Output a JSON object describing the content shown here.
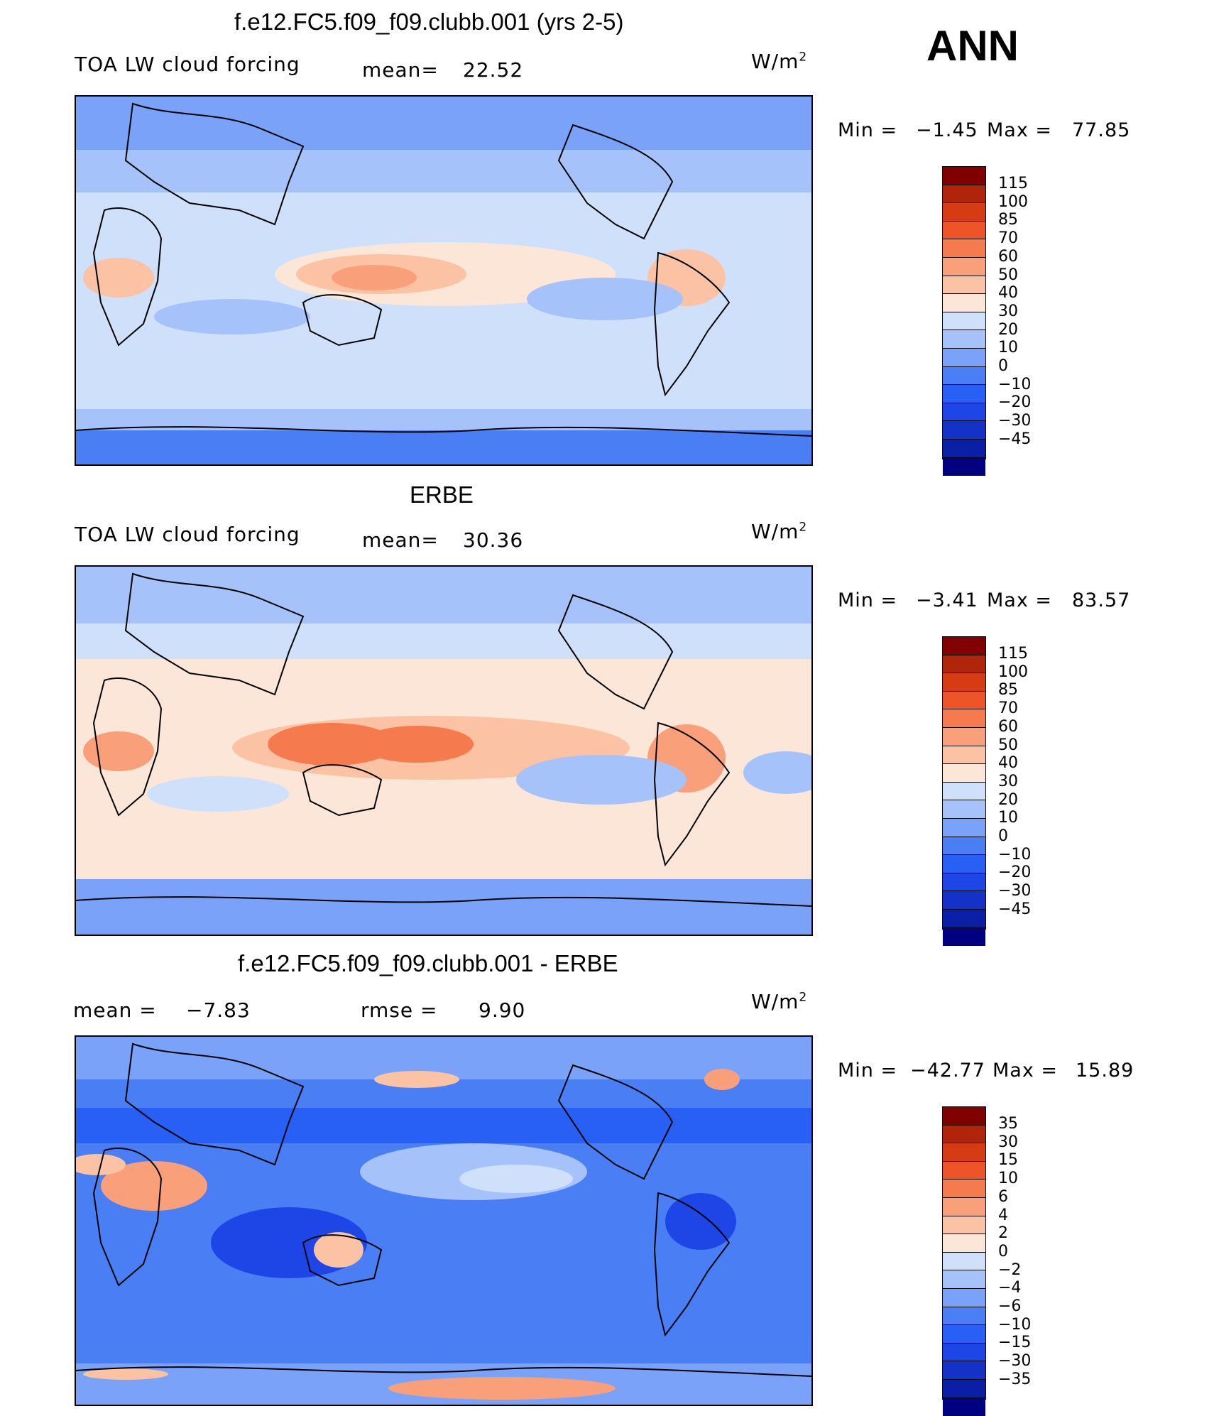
{
  "season": "ANN",
  "units_base": "W/m",
  "units_exp": "2",
  "colors": {
    "abs": [
      "#000080",
      "#0a1ea6",
      "#1432c8",
      "#1e46e6",
      "#2860f5",
      "#4a7ef5",
      "#7aa2f8",
      "#a5c2fa",
      "#cfe0fb",
      "#fbe6d8",
      "#fcc2a4",
      "#f9a07a",
      "#f57a4e",
      "#ed5528",
      "#d63c14",
      "#b0240a",
      "#800000"
    ],
    "diff": [
      "#000080",
      "#0a1ea6",
      "#1432c8",
      "#1e46e6",
      "#2860f5",
      "#4a7ef5",
      "#7aa2f8",
      "#a5c2fa",
      "#cfe0fb",
      "#fbe6d8",
      "#fcc2a4",
      "#f9a07a",
      "#f57a4e",
      "#ed5528",
      "#d63c14",
      "#b0240a",
      "#800000"
    ]
  },
  "panels": [
    {
      "title": "f.e12.FC5.f09_f09.clubb.001 (yrs 2-5)",
      "left_label": "TOA LW cloud forcing",
      "stat_label": "mean=",
      "stat_value": "22.52",
      "min_label": "Min  =",
      "min_value": "−1.45",
      "max_label": "Max  =",
      "max_value": "77.85",
      "levels": [
        "115",
        "100",
        "85",
        "70",
        "60",
        "50",
        "40",
        "30",
        "20",
        "10",
        "0",
        "−10",
        "−20",
        "−30",
        "−45"
      ]
    },
    {
      "title": "ERBE",
      "left_label": "TOA LW cloud forcing",
      "stat_label": "mean=",
      "stat_value": "30.36",
      "min_label": "Min  =",
      "min_value": "−3.41",
      "max_label": "Max  =",
      "max_value": "83.57",
      "levels": [
        "115",
        "100",
        "85",
        "70",
        "60",
        "50",
        "40",
        "30",
        "20",
        "10",
        "0",
        "−10",
        "−20",
        "−30",
        "−45"
      ]
    },
    {
      "title": "f.e12.FC5.f09_f09.clubb.001 - ERBE",
      "mean_label": "mean  =",
      "mean_value": "−7.83",
      "rmse_label": "rmse  =",
      "rmse_value": "9.90",
      "min_label": "Min  =",
      "min_value": "−42.77",
      "max_label": "Max  =",
      "max_value": "15.89",
      "levels": [
        "35",
        "30",
        "15",
        "10",
        "6",
        "4",
        "2",
        "0",
        "−2",
        "−4",
        "−6",
        "−10",
        "−15",
        "−30",
        "−35"
      ]
    }
  ]
}
